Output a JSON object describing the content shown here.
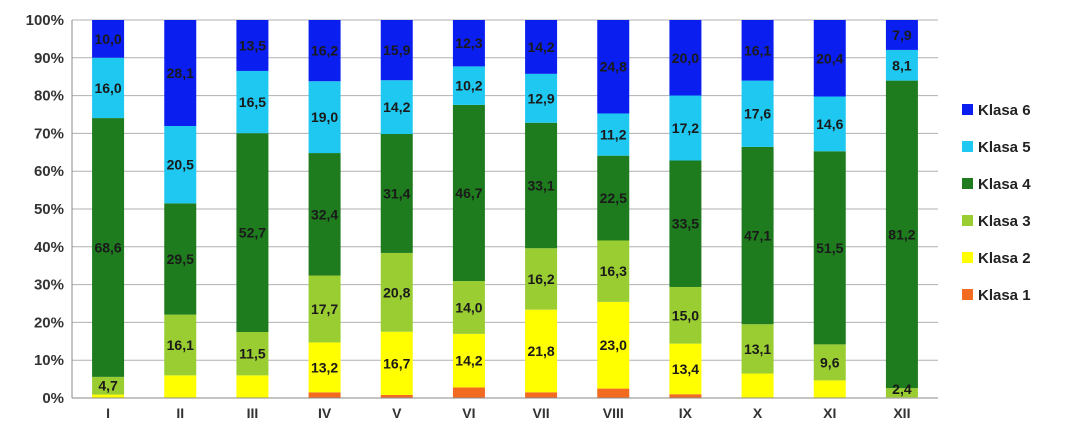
{
  "chart_data": {
    "type": "bar",
    "stacked": "percent",
    "categories": [
      "I",
      "II",
      "III",
      "IV",
      "V",
      "VI",
      "VII",
      "VIII",
      "IX",
      "X",
      "XI",
      "XII"
    ],
    "y_tick_labels": [
      "0%",
      "10%",
      "20%",
      "30%",
      "40%",
      "50%",
      "60%",
      "70%",
      "80%",
      "90%",
      "100%"
    ],
    "ylim": [
      0,
      100
    ],
    "grid": true,
    "legend_position": "right",
    "series": [
      {
        "name": "Klasa 1",
        "color": "#F26B21",
        "values": [
          0.0,
          0.0,
          0.0,
          1.5,
          0.8,
          2.8,
          1.5,
          2.5,
          1.0,
          0.0,
          0.0,
          0.0
        ],
        "labels": [
          "",
          "",
          "",
          "",
          "",
          "",
          "",
          "",
          "",
          "",
          "",
          ""
        ]
      },
      {
        "name": "Klasa 2",
        "color": "#FFFF00",
        "values": [
          0.9,
          6.0,
          6.0,
          13.2,
          16.7,
          14.2,
          21.8,
          23.0,
          13.4,
          6.5,
          4.7,
          0.2
        ],
        "labels": [
          "",
          "",
          "",
          "13,2",
          "16,7",
          "14,2",
          "21,8",
          "23,0",
          "13,4",
          "",
          "",
          ""
        ]
      },
      {
        "name": "Klasa 3",
        "color": "#9ACD32",
        "values": [
          4.7,
          16.1,
          11.5,
          17.7,
          20.8,
          14.0,
          16.2,
          16.3,
          15.0,
          13.1,
          9.6,
          2.4
        ],
        "labels": [
          "4,7",
          "16,1",
          "11,5",
          "17,7",
          "20,8",
          "14,0",
          "16,2",
          "16,3",
          "15,0",
          "13,1",
          "9,6",
          "2,4"
        ]
      },
      {
        "name": "Klasa 4",
        "color": "#1E7B1E",
        "values": [
          68.6,
          29.5,
          52.7,
          32.4,
          31.4,
          46.7,
          33.1,
          22.5,
          33.5,
          47.1,
          51.5,
          81.2
        ],
        "labels": [
          "68,6",
          "29,5",
          "52,7",
          "32,4",
          "31,4",
          "46,7",
          "33,1",
          "22,5",
          "33,5",
          "47,1",
          "51,5",
          "81,2"
        ]
      },
      {
        "name": "Klasa 5",
        "color": "#1EC8F0",
        "values": [
          16.0,
          20.5,
          16.5,
          19.0,
          14.2,
          10.2,
          12.9,
          11.2,
          17.2,
          17.6,
          14.6,
          8.1
        ],
        "labels": [
          "16,0",
          "20,5",
          "16,5",
          "19,0",
          "14,2",
          "10,2",
          "12,9",
          "11,2",
          "17,2",
          "17,6",
          "14,6",
          "8,1"
        ]
      },
      {
        "name": "Klasa 6",
        "color": "#0A1EF0",
        "values": [
          10.0,
          28.1,
          13.5,
          16.2,
          15.9,
          12.3,
          14.2,
          24.8,
          20.0,
          16.1,
          20.4,
          7.9
        ],
        "labels": [
          "10,0",
          "28,1",
          "13,5",
          "16,2",
          "15,9",
          "12,3",
          "14,2",
          "24,8",
          "20,0",
          "16,1",
          "20,4",
          "7,9"
        ]
      }
    ],
    "legend_order": [
      "Klasa 6",
      "Klasa 5",
      "Klasa 4",
      "Klasa 3",
      "Klasa 2",
      "Klasa 1"
    ],
    "gridline_color": "#b0b0b0"
  }
}
